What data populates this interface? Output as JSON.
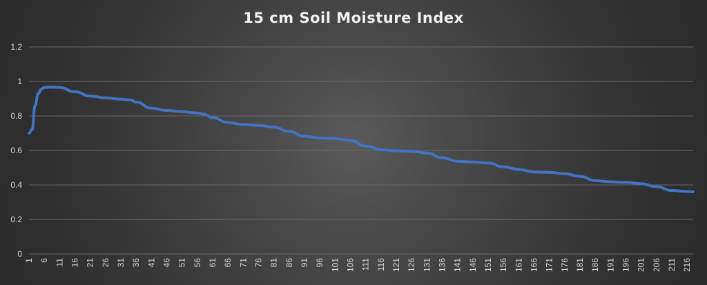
{
  "chart_data": {
    "type": "line",
    "title": "15 cm Soil Moisture Index",
    "xlabel": "",
    "ylabel": "",
    "ylim": [
      0,
      1.2
    ],
    "yticks": [
      "0",
      "0.2",
      "0.4",
      "0.6",
      "0.8",
      "1",
      "1.2"
    ],
    "x_range": [
      1,
      218
    ],
    "x_ticks": [
      1,
      6,
      11,
      16,
      21,
      26,
      31,
      36,
      41,
      46,
      51,
      56,
      61,
      66,
      71,
      76,
      81,
      86,
      91,
      96,
      101,
      106,
      111,
      116,
      121,
      126,
      131,
      136,
      141,
      146,
      151,
      156,
      161,
      166,
      171,
      176,
      181,
      186,
      191,
      196,
      201,
      206,
      211,
      216
    ],
    "grid": true,
    "legend": "none",
    "line_color": "#4472c4",
    "series": [
      {
        "points": [
          [
            1,
            0.7
          ],
          [
            2,
            0.72
          ],
          [
            3,
            0.86
          ],
          [
            4,
            0.93
          ],
          [
            5,
            0.955
          ],
          [
            6,
            0.965
          ],
          [
            8,
            0.967
          ],
          [
            11,
            0.965
          ],
          [
            16,
            0.94
          ],
          [
            21,
            0.915
          ],
          [
            26,
            0.905
          ],
          [
            31,
            0.897
          ],
          [
            34,
            0.893
          ],
          [
            36,
            0.88
          ],
          [
            41,
            0.845
          ],
          [
            46,
            0.832
          ],
          [
            51,
            0.825
          ],
          [
            56,
            0.817
          ],
          [
            58,
            0.81
          ],
          [
            61,
            0.79
          ],
          [
            66,
            0.762
          ],
          [
            71,
            0.75
          ],
          [
            76,
            0.745
          ],
          [
            81,
            0.735
          ],
          [
            86,
            0.71
          ],
          [
            91,
            0.682
          ],
          [
            96,
            0.672
          ],
          [
            101,
            0.668
          ],
          [
            106,
            0.658
          ],
          [
            111,
            0.625
          ],
          [
            116,
            0.605
          ],
          [
            121,
            0.598
          ],
          [
            126,
            0.595
          ],
          [
            131,
            0.585
          ],
          [
            136,
            0.558
          ],
          [
            141,
            0.537
          ],
          [
            146,
            0.533
          ],
          [
            151,
            0.527
          ],
          [
            156,
            0.505
          ],
          [
            161,
            0.49
          ],
          [
            166,
            0.475
          ],
          [
            171,
            0.473
          ],
          [
            176,
            0.465
          ],
          [
            181,
            0.45
          ],
          [
            186,
            0.425
          ],
          [
            191,
            0.418
          ],
          [
            196,
            0.415
          ],
          [
            201,
            0.407
          ],
          [
            206,
            0.39
          ],
          [
            211,
            0.368
          ],
          [
            216,
            0.362
          ],
          [
            218,
            0.36
          ]
        ]
      }
    ]
  }
}
